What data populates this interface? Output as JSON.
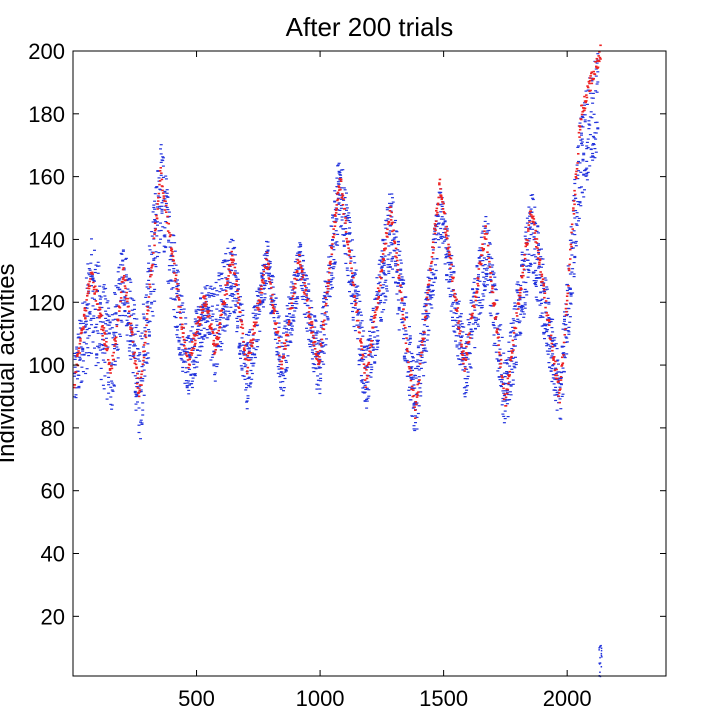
{
  "chart_data": {
    "type": "scatter",
    "title": "After 200 trials",
    "xlabel": "",
    "ylabel": "Individual activities",
    "xlim": [
      0,
      2400
    ],
    "ylim": [
      1,
      200
    ],
    "xticks": [
      500,
      1000,
      1500,
      2000
    ],
    "yticks": [
      20,
      40,
      60,
      80,
      100,
      120,
      140,
      160,
      180,
      200
    ],
    "grid": false,
    "legend": "none",
    "series": [
      {
        "color": "#2233dd",
        "marker": "dot",
        "description_points": "activity spread envelope",
        "envelope": [
          {
            "x": 0,
            "lo": 84,
            "hi": 104
          },
          {
            "x": 70,
            "lo": 104,
            "hi": 141
          },
          {
            "x": 150,
            "lo": 84,
            "hi": 118
          },
          {
            "x": 200,
            "lo": 118,
            "hi": 141
          },
          {
            "x": 265,
            "lo": 75,
            "hi": 110
          },
          {
            "x": 350,
            "lo": 140,
            "hi": 173
          },
          {
            "x": 460,
            "lo": 87,
            "hi": 110
          },
          {
            "x": 530,
            "lo": 110,
            "hi": 127
          },
          {
            "x": 570,
            "lo": 95,
            "hi": 127
          },
          {
            "x": 640,
            "lo": 120,
            "hi": 143
          },
          {
            "x": 700,
            "lo": 85,
            "hi": 108
          },
          {
            "x": 780,
            "lo": 126,
            "hi": 141
          },
          {
            "x": 840,
            "lo": 88,
            "hi": 110
          },
          {
            "x": 910,
            "lo": 125,
            "hi": 141
          },
          {
            "x": 990,
            "lo": 88,
            "hi": 110
          },
          {
            "x": 1075,
            "lo": 145,
            "hi": 172
          },
          {
            "x": 1180,
            "lo": 84,
            "hi": 105
          },
          {
            "x": 1280,
            "lo": 130,
            "hi": 158
          },
          {
            "x": 1380,
            "lo": 75,
            "hi": 100
          },
          {
            "x": 1480,
            "lo": 140,
            "hi": 158
          },
          {
            "x": 1580,
            "lo": 88,
            "hi": 110
          },
          {
            "x": 1665,
            "lo": 125,
            "hi": 151
          },
          {
            "x": 1745,
            "lo": 78,
            "hi": 102
          },
          {
            "x": 1850,
            "lo": 130,
            "hi": 157
          },
          {
            "x": 1965,
            "lo": 80,
            "hi": 100
          },
          {
            "x": 2050,
            "lo": 150,
            "hi": 185
          },
          {
            "x": 2120,
            "lo": 170,
            "hi": 200
          },
          {
            "x": 2130,
            "lo": 1,
            "hi": 11
          }
        ]
      },
      {
        "color": "#ee2222",
        "marker": "dot",
        "trace": [
          {
            "x": 0,
            "y": 95
          },
          {
            "x": 70,
            "y": 130
          },
          {
            "x": 150,
            "y": 98
          },
          {
            "x": 200,
            "y": 130
          },
          {
            "x": 265,
            "y": 90
          },
          {
            "x": 350,
            "y": 162
          },
          {
            "x": 460,
            "y": 100
          },
          {
            "x": 530,
            "y": 122
          },
          {
            "x": 570,
            "y": 105
          },
          {
            "x": 640,
            "y": 135
          },
          {
            "x": 700,
            "y": 100
          },
          {
            "x": 780,
            "y": 134
          },
          {
            "x": 840,
            "y": 100
          },
          {
            "x": 910,
            "y": 134
          },
          {
            "x": 990,
            "y": 100
          },
          {
            "x": 1075,
            "y": 160
          },
          {
            "x": 1180,
            "y": 95
          },
          {
            "x": 1280,
            "y": 150
          },
          {
            "x": 1380,
            "y": 85
          },
          {
            "x": 1480,
            "y": 158
          },
          {
            "x": 1580,
            "y": 100
          },
          {
            "x": 1665,
            "y": 143
          },
          {
            "x": 1745,
            "y": 88
          },
          {
            "x": 1850,
            "y": 150
          },
          {
            "x": 1965,
            "y": 90
          },
          {
            "x": 2050,
            "y": 180
          },
          {
            "x": 2130,
            "y": 200
          }
        ]
      }
    ]
  }
}
